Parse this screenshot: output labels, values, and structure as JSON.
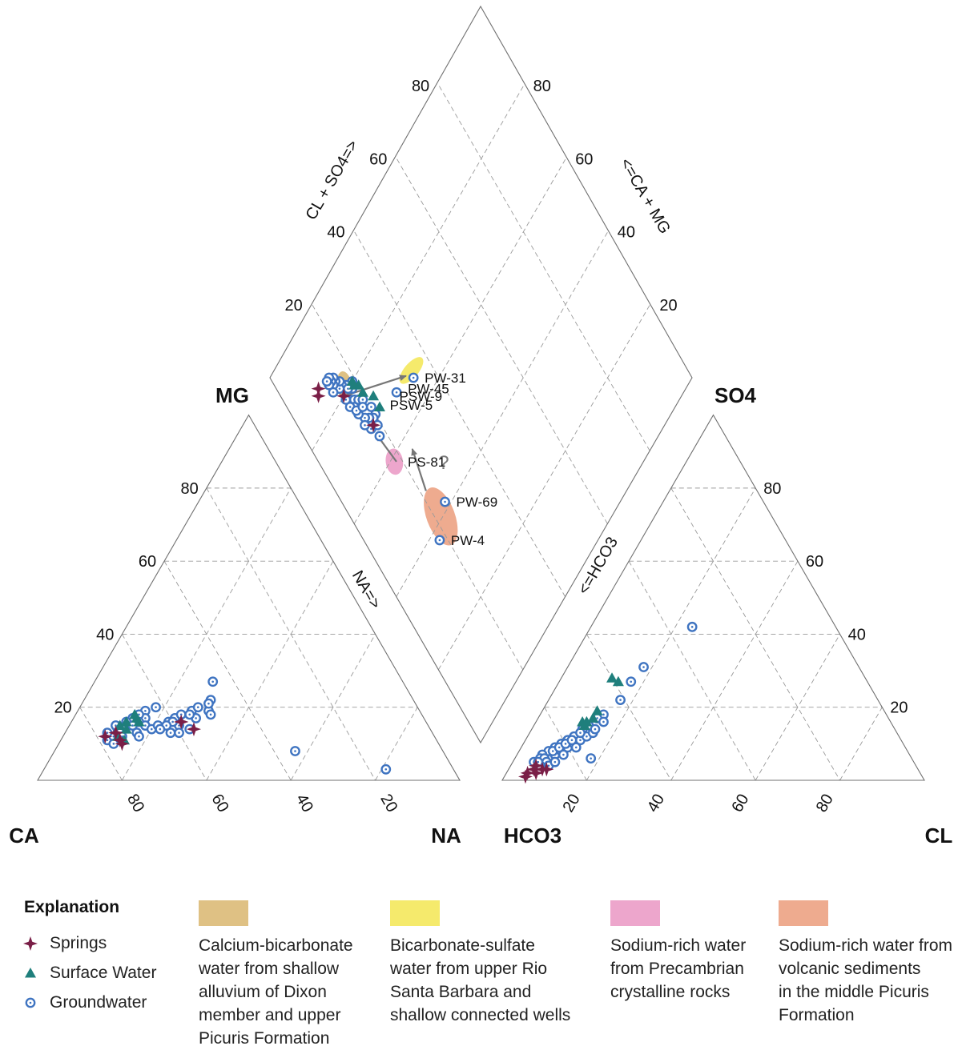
{
  "chart_data": {
    "type": "scatter",
    "subtype": "piper-trilinear",
    "corners": {
      "cation": {
        "bottom_left": "CA",
        "bottom_right": "NA",
        "top": "MG"
      },
      "anion": {
        "bottom_left": "HCO3",
        "bottom_right": "CL",
        "top": "SO4"
      }
    },
    "axis_titles": {
      "cation_right": "NA=>",
      "anion_left": "<=HCO3",
      "diamond_upper_left": "CL + SO4=>",
      "diamond_upper_right": "<=CA + MG"
    },
    "tick_labels": {
      "cation_left": [
        "80",
        "60",
        "40",
        "20"
      ],
      "cation_bottom": [
        "80",
        "60",
        "40",
        "20"
      ],
      "anion_right": [
        "80",
        "60",
        "40",
        "20"
      ],
      "anion_bottom": [
        "20",
        "40",
        "60",
        "80"
      ],
      "diamond_left": [
        "80",
        "60",
        "40",
        "20"
      ],
      "diamond_right": [
        "80",
        "60",
        "40",
        "20"
      ]
    },
    "zones": [
      {
        "key": "calcium_bicarbonate",
        "color": "#dfc184",
        "center": {
          "so4cl": 16.5,
          "camg": 81.0
        },
        "rx": 3.0,
        "ry": 6.2,
        "rotate": -10
      },
      {
        "key": "bicarbonate_sulfate",
        "color": "#f5ea6c",
        "center": {
          "so4cl": 34.5,
          "camg": 67.5
        },
        "rx": 2.8,
        "ry": 6.5,
        "rotate": 40
      },
      {
        "key": "precambrian",
        "color": "#eda6cc",
        "center": {
          "so4cl": 18.0,
          "camg": 59.0
        },
        "rx": 3.4,
        "ry": 5.2,
        "rotate": -8
      },
      {
        "key": "volcanic",
        "color": "#eeab8f",
        "center": {
          "so4cl": 21.5,
          "camg": 40.5
        },
        "rx": 5.6,
        "ry": 12.0,
        "rotate": -20
      }
    ],
    "arrows": [
      {
        "from": {
          "so4cl": 15.0,
          "camg": 80.0
        },
        "to": {
          "so4cl": 32.5,
          "camg": 68.0
        }
      },
      {
        "from": {
          "so4cl": 18.5,
          "camg": 58.5
        },
        "to": {
          "so4cl": 17.5,
          "camg": 67.0
        }
      },
      {
        "from": {
          "so4cl": 21.5,
          "camg": 47.5
        },
        "to": {
          "so4cl": 24.0,
          "camg": 56.5
        }
      }
    ],
    "question_mark": {
      "text": "?",
      "so4cl": 24.0,
      "camg": 51.0
    },
    "point_labels": [
      {
        "text": "PW-31",
        "so4cl": 34.0,
        "camg": 66.0
      },
      {
        "text": "PW-45",
        "so4cl": 28.5,
        "camg": 68.5
      },
      {
        "text": "PSW-9",
        "so4cl": 25.5,
        "camg": 69.5
      },
      {
        "text": "PSW-5",
        "so4cl": 22.0,
        "camg": 70.5
      },
      {
        "text": "PS-81",
        "so4cl": 18.5,
        "camg": 58.5
      },
      {
        "text": "PW-69",
        "so4cl": 24.5,
        "camg": 41.5
      },
      {
        "text": "PW-4",
        "so4cl": 18.0,
        "camg": 37.5
      }
    ],
    "series": [
      {
        "name": "Springs",
        "color": "#7a1f47",
        "marker": "star4",
        "cation": [
          [
            10,
            12
          ],
          [
            12,
            13
          ],
          [
            12,
            13
          ],
          [
            14,
            11
          ],
          [
            15,
            10
          ],
          [
            26,
            16
          ],
          [
            26,
            16
          ],
          [
            30,
            14
          ]
        ],
        "anion": [
          [
            5,
            2
          ],
          [
            6,
            3
          ],
          [
            8,
            3
          ],
          [
            7,
            2
          ],
          [
            5,
            1
          ],
          [
            9,
            3
          ],
          [
            7,
            2
          ],
          [
            6,
            4
          ]
        ],
        "diamond": [
          [
            9,
            86
          ],
          [
            10,
            87
          ],
          [
            18,
            69
          ],
          [
            15,
            80
          ]
        ]
      },
      {
        "name": "Surface Water",
        "color": "#1f7f7c",
        "marker": "triangle",
        "cation": [
          [
            12,
            15
          ],
          [
            13,
            16
          ],
          [
            14,
            14
          ],
          [
            15,
            17
          ],
          [
            16,
            16
          ],
          [
            13,
            12
          ],
          [
            15,
            11
          ],
          [
            14,
            18
          ]
        ],
        "anion": [
          [
            12,
            15
          ],
          [
            13,
            17
          ],
          [
            12,
            16
          ],
          [
            11,
            16
          ],
          [
            13,
            19
          ],
          [
            12,
            28
          ],
          [
            14,
            27
          ],
          [
            12,
            16
          ]
        ],
        "diamond": [
          [
            22,
            70
          ],
          [
            22,
            73
          ],
          [
            20,
            76
          ],
          [
            20,
            78
          ],
          [
            19,
            79
          ],
          [
            19,
            80
          ]
        ]
      },
      {
        "name": "Groundwater",
        "color": "#3f74c1",
        "marker": "ring",
        "cation": [
          [
            28,
            27
          ],
          [
            18,
            20
          ],
          [
            16,
            19
          ],
          [
            17,
            17
          ],
          [
            15,
            18
          ],
          [
            16,
            16
          ],
          [
            14,
            17
          ],
          [
            13,
            16
          ],
          [
            15,
            15
          ],
          [
            12,
            14
          ],
          [
            13,
            13
          ],
          [
            14,
            12
          ],
          [
            11,
            11
          ],
          [
            12,
            12
          ],
          [
            10,
            13
          ],
          [
            11,
            15
          ],
          [
            17,
            13
          ],
          [
            18,
            12
          ],
          [
            18,
            15
          ],
          [
            20,
            14
          ],
          [
            21,
            15
          ],
          [
            23,
            16
          ],
          [
            24,
            17
          ],
          [
            26,
            15
          ],
          [
            25,
            18
          ],
          [
            27,
            19
          ],
          [
            28,
            20
          ],
          [
            31,
            19
          ],
          [
            32,
            18
          ],
          [
            29,
            14
          ],
          [
            27,
            13
          ],
          [
            25,
            13
          ],
          [
            24,
            16
          ],
          [
            30,
            22
          ],
          [
            30,
            21
          ],
          [
            29,
            17
          ],
          [
            27,
            18
          ],
          [
            23,
            15
          ],
          [
            22,
            14
          ],
          [
            13,
            10
          ],
          [
            57,
            8
          ],
          [
            81,
            3
          ]
        ],
        "anion": [
          [
            24,
            42
          ],
          [
            18,
            31
          ],
          [
            17,
            27
          ],
          [
            17,
            22
          ],
          [
            15,
            18
          ],
          [
            14,
            17
          ],
          [
            13,
            15
          ],
          [
            12,
            14
          ],
          [
            11,
            12
          ],
          [
            10,
            11
          ],
          [
            9,
            10
          ],
          [
            8,
            9
          ],
          [
            7,
            8
          ],
          [
            6,
            7
          ],
          [
            5,
            5
          ],
          [
            6,
            6
          ],
          [
            7,
            6
          ],
          [
            9,
            7
          ],
          [
            10,
            8
          ],
          [
            11,
            9
          ],
          [
            12,
            10
          ],
          [
            13,
            11
          ],
          [
            8,
            5
          ],
          [
            9,
            4
          ],
          [
            10,
            5
          ],
          [
            11,
            7
          ],
          [
            13,
            9
          ],
          [
            14,
            12
          ],
          [
            15,
            13
          ],
          [
            16,
            16
          ],
          [
            18,
            6
          ],
          [
            7,
            4
          ],
          [
            6,
            5
          ],
          [
            8,
            8
          ],
          [
            9,
            9
          ],
          [
            10,
            10
          ],
          [
            12,
            13
          ],
          [
            15,
            14
          ],
          [
            11,
            11
          ]
        ],
        "diamond": [
          [
            34,
            66
          ],
          [
            28,
            68
          ],
          [
            19,
            80
          ],
          [
            18,
            79
          ],
          [
            17,
            81
          ],
          [
            16,
            82
          ],
          [
            15,
            82
          ],
          [
            16,
            83
          ],
          [
            15,
            84
          ],
          [
            14,
            84
          ],
          [
            15,
            85
          ],
          [
            14,
            85
          ],
          [
            13,
            85
          ],
          [
            14,
            86
          ],
          [
            13,
            86
          ],
          [
            13,
            83
          ],
          [
            16,
            78
          ],
          [
            17,
            77
          ],
          [
            17,
            80
          ],
          [
            18,
            76
          ],
          [
            19,
            75
          ],
          [
            20,
            72
          ],
          [
            20,
            70
          ],
          [
            19,
            70
          ],
          [
            18,
            71
          ],
          [
            17,
            72
          ],
          [
            16,
            74
          ],
          [
            16,
            76
          ],
          [
            15,
            77
          ],
          [
            16,
            75
          ],
          [
            15,
            79
          ],
          [
            24.5,
            41.5
          ],
          [
            18,
            37.5
          ],
          [
            18,
            66
          ],
          [
            17,
            69
          ],
          [
            19,
            68
          ],
          [
            16,
            71
          ],
          [
            18,
            74
          ]
        ]
      }
    ]
  },
  "legend": {
    "title": "Explanation",
    "items": [
      {
        "label": "Springs"
      },
      {
        "label": "Surface Water"
      },
      {
        "label": "Groundwater"
      }
    ],
    "zones": [
      {
        "color": "#dfc184",
        "lines": [
          "Calcium-bicarbonate",
          "water from shallow",
          "alluvium of Dixon",
          "member and upper",
          "Picuris Formation"
        ]
      },
      {
        "color": "#f5ea6c",
        "lines": [
          "Bicarbonate-sulfate",
          "water from upper Rio",
          "Santa Barbara and",
          "shallow connected wells"
        ]
      },
      {
        "color": "#eda6cc",
        "lines": [
          "Sodium-rich water",
          "from Precambrian",
          "crystalline rocks"
        ]
      },
      {
        "color": "#eeab8f",
        "lines": [
          "Sodium-rich water from",
          "volcanic sediments",
          "in the middle Picuris",
          "Formation"
        ]
      }
    ]
  }
}
